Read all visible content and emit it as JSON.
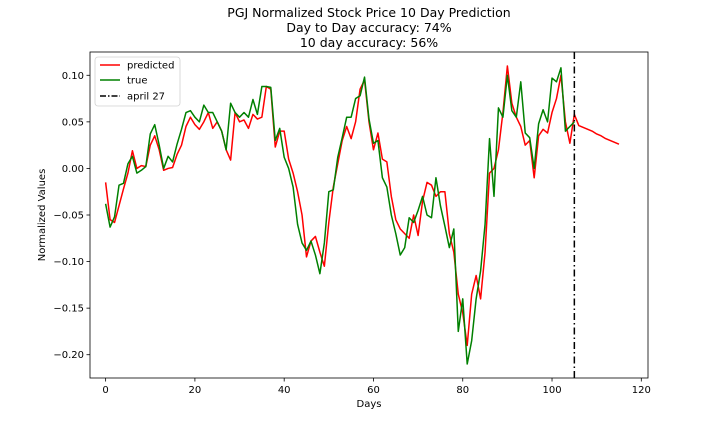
{
  "chart_data": {
    "type": "line",
    "title": "PGJ Normalized Stock Price 10 Day Prediction",
    "subtitle_lines": [
      "Day to Day accuracy: 74%",
      "10 day accuracy: 56%"
    ],
    "xlabel": "Days",
    "ylabel": "Normalized Values",
    "xlim": [
      -3.5,
      121.5
    ],
    "ylim": [
      -0.225,
      0.125
    ],
    "x_ticks": [
      0,
      20,
      40,
      60,
      80,
      100,
      120
    ],
    "y_ticks": [
      -0.2,
      -0.15,
      -0.1,
      -0.05,
      0.0,
      0.05,
      0.1
    ],
    "y_tick_labels": [
      "−0.20",
      "−0.15",
      "−0.10",
      "−0.05",
      "0.00",
      "0.05",
      "0.10"
    ],
    "grid": false,
    "legend": {
      "position": "top-left",
      "entries": [
        "predicted",
        "true",
        "april 27"
      ]
    },
    "vline": {
      "label": "april 27",
      "x": 105,
      "color": "#000000",
      "style": "dashdot"
    },
    "series": [
      {
        "name": "predicted",
        "color": "#ff0000",
        "points": [
          [
            0,
            -0.015
          ],
          [
            1,
            -0.055
          ],
          [
            2,
            -0.058
          ],
          [
            3,
            -0.04
          ],
          [
            4,
            -0.022
          ],
          [
            5,
            -0.005
          ],
          [
            6,
            0.019
          ],
          [
            7,
            0.0
          ],
          [
            8,
            0.003
          ],
          [
            9,
            0.002
          ],
          [
            10,
            0.025
          ],
          [
            11,
            0.035
          ],
          [
            12,
            0.02
          ],
          [
            13,
            -0.002
          ],
          [
            14,
            0.0
          ],
          [
            15,
            0.001
          ],
          [
            16,
            0.015
          ],
          [
            17,
            0.025
          ],
          [
            18,
            0.045
          ],
          [
            19,
            0.055
          ],
          [
            20,
            0.047
          ],
          [
            21,
            0.042
          ],
          [
            22,
            0.05
          ],
          [
            23,
            0.06
          ],
          [
            24,
            0.043
          ],
          [
            25,
            0.05
          ],
          [
            26,
            0.04
          ],
          [
            27,
            0.02
          ],
          [
            28,
            0.009
          ],
          [
            29,
            0.06
          ],
          [
            30,
            0.05
          ],
          [
            31,
            0.052
          ],
          [
            32,
            0.043
          ],
          [
            33,
            0.058
          ],
          [
            34,
            0.053
          ],
          [
            35,
            0.055
          ],
          [
            36,
            0.088
          ],
          [
            37,
            0.085
          ],
          [
            38,
            0.023
          ],
          [
            39,
            0.04
          ],
          [
            40,
            0.04
          ],
          [
            41,
            0.01
          ],
          [
            42,
            -0.005
          ],
          [
            43,
            -0.025
          ],
          [
            44,
            -0.05
          ],
          [
            45,
            -0.095
          ],
          [
            46,
            -0.078
          ],
          [
            47,
            -0.073
          ],
          [
            48,
            -0.09
          ],
          [
            49,
            -0.105
          ],
          [
            50,
            -0.058
          ],
          [
            51,
            -0.02
          ],
          [
            52,
            0.005
          ],
          [
            53,
            0.03
          ],
          [
            54,
            0.045
          ],
          [
            55,
            0.032
          ],
          [
            56,
            0.05
          ],
          [
            57,
            0.085
          ],
          [
            58,
            0.095
          ],
          [
            59,
            0.05
          ],
          [
            60,
            0.02
          ],
          [
            61,
            0.038
          ],
          [
            62,
            0.01
          ],
          [
            63,
            0.007
          ],
          [
            64,
            -0.03
          ],
          [
            65,
            -0.055
          ],
          [
            66,
            -0.065
          ],
          [
            67,
            -0.07
          ],
          [
            68,
            -0.075
          ],
          [
            69,
            -0.05
          ],
          [
            70,
            -0.072
          ],
          [
            71,
            -0.035
          ],
          [
            72,
            -0.015
          ],
          [
            73,
            -0.018
          ],
          [
            74,
            -0.03
          ],
          [
            75,
            -0.025
          ],
          [
            76,
            -0.025
          ],
          [
            77,
            -0.07
          ],
          [
            78,
            -0.09
          ],
          [
            79,
            -0.135
          ],
          [
            80,
            -0.155
          ],
          [
            81,
            -0.19
          ],
          [
            82,
            -0.135
          ],
          [
            83,
            -0.115
          ],
          [
            84,
            -0.14
          ],
          [
            85,
            -0.09
          ],
          [
            86,
            -0.005
          ],
          [
            87,
            0.0
          ],
          [
            88,
            0.02
          ],
          [
            89,
            0.06
          ],
          [
            90,
            0.11
          ],
          [
            91,
            0.07
          ],
          [
            92,
            0.055
          ],
          [
            93,
            0.045
          ],
          [
            94,
            0.025
          ],
          [
            95,
            0.03
          ],
          [
            96,
            -0.01
          ],
          [
            97,
            0.035
          ],
          [
            98,
            0.042
          ],
          [
            99,
            0.038
          ],
          [
            100,
            0.06
          ],
          [
            101,
            0.075
          ],
          [
            102,
            0.1
          ],
          [
            103,
            0.05
          ],
          [
            104,
            0.027
          ],
          [
            105,
            0.058
          ],
          [
            106,
            0.046
          ],
          [
            107,
            0.044
          ],
          [
            108,
            0.042
          ],
          [
            109,
            0.04
          ],
          [
            110,
            0.037
          ],
          [
            111,
            0.035
          ],
          [
            112,
            0.032
          ],
          [
            113,
            0.03
          ],
          [
            114,
            0.028
          ],
          [
            115,
            0.026
          ]
        ]
      },
      {
        "name": "true",
        "color": "#008000",
        "points": [
          [
            0,
            -0.038
          ],
          [
            1,
            -0.063
          ],
          [
            2,
            -0.052
          ],
          [
            3,
            -0.018
          ],
          [
            4,
            -0.016
          ],
          [
            5,
            0.005
          ],
          [
            6,
            0.013
          ],
          [
            7,
            -0.005
          ],
          [
            8,
            -0.002
          ],
          [
            9,
            0.002
          ],
          [
            10,
            0.037
          ],
          [
            11,
            0.047
          ],
          [
            12,
            0.025
          ],
          [
            13,
            0.0
          ],
          [
            14,
            0.013
          ],
          [
            15,
            0.007
          ],
          [
            16,
            0.026
          ],
          [
            17,
            0.042
          ],
          [
            18,
            0.06
          ],
          [
            19,
            0.062
          ],
          [
            20,
            0.055
          ],
          [
            21,
            0.05
          ],
          [
            22,
            0.068
          ],
          [
            23,
            0.06
          ],
          [
            24,
            0.06
          ],
          [
            25,
            0.05
          ],
          [
            26,
            0.04
          ],
          [
            27,
            0.02
          ],
          [
            28,
            0.07
          ],
          [
            29,
            0.06
          ],
          [
            30,
            0.055
          ],
          [
            31,
            0.06
          ],
          [
            32,
            0.055
          ],
          [
            33,
            0.074
          ],
          [
            34,
            0.058
          ],
          [
            35,
            0.088
          ],
          [
            36,
            0.088
          ],
          [
            37,
            0.087
          ],
          [
            38,
            0.03
          ],
          [
            39,
            0.043
          ],
          [
            40,
            0.012
          ],
          [
            41,
            0.0
          ],
          [
            42,
            -0.02
          ],
          [
            43,
            -0.06
          ],
          [
            44,
            -0.08
          ],
          [
            45,
            -0.088
          ],
          [
            46,
            -0.078
          ],
          [
            47,
            -0.093
          ],
          [
            48,
            -0.113
          ],
          [
            49,
            -0.08
          ],
          [
            50,
            -0.025
          ],
          [
            51,
            -0.023
          ],
          [
            52,
            0.012
          ],
          [
            53,
            0.033
          ],
          [
            54,
            0.055
          ],
          [
            55,
            0.055
          ],
          [
            56,
            0.075
          ],
          [
            57,
            0.078
          ],
          [
            58,
            0.098
          ],
          [
            59,
            0.053
          ],
          [
            60,
            0.027
          ],
          [
            61,
            0.03
          ],
          [
            62,
            -0.01
          ],
          [
            63,
            -0.02
          ],
          [
            64,
            -0.05
          ],
          [
            65,
            -0.07
          ],
          [
            66,
            -0.093
          ],
          [
            67,
            -0.085
          ],
          [
            68,
            -0.053
          ],
          [
            69,
            -0.058
          ],
          [
            70,
            -0.045
          ],
          [
            71,
            -0.03
          ],
          [
            72,
            -0.05
          ],
          [
            73,
            -0.053
          ],
          [
            74,
            -0.01
          ],
          [
            75,
            -0.04
          ],
          [
            76,
            -0.062
          ],
          [
            77,
            -0.085
          ],
          [
            78,
            -0.065
          ],
          [
            79,
            -0.175
          ],
          [
            80,
            -0.14
          ],
          [
            81,
            -0.21
          ],
          [
            82,
            -0.185
          ],
          [
            83,
            -0.14
          ],
          [
            84,
            -0.11
          ],
          [
            85,
            -0.06
          ],
          [
            86,
            0.032
          ],
          [
            87,
            -0.03
          ],
          [
            88,
            0.065
          ],
          [
            89,
            0.055
          ],
          [
            90,
            0.1
          ],
          [
            91,
            0.062
          ],
          [
            92,
            0.055
          ],
          [
            93,
            0.093
          ],
          [
            94,
            0.038
          ],
          [
            95,
            0.033
          ],
          [
            96,
            0.0
          ],
          [
            97,
            0.048
          ],
          [
            98,
            0.063
          ],
          [
            99,
            0.05
          ],
          [
            100,
            0.097
          ],
          [
            101,
            0.093
          ],
          [
            102,
            0.108
          ],
          [
            103,
            0.04
          ],
          [
            104,
            0.045
          ],
          [
            105,
            0.05
          ]
        ]
      }
    ]
  }
}
